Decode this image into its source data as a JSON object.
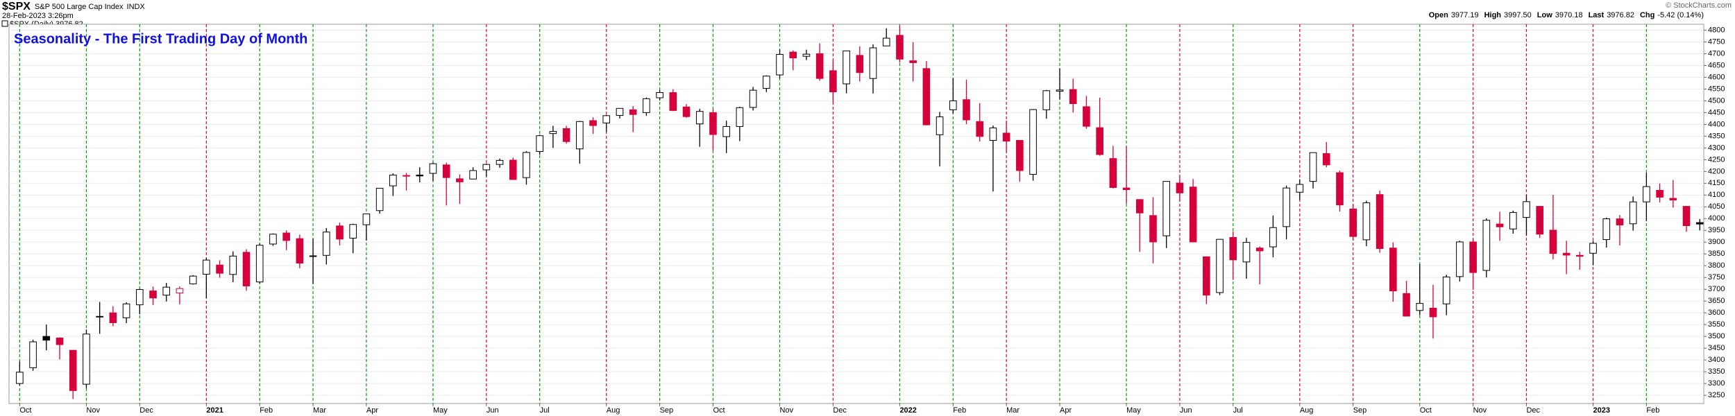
{
  "chart_data": {
    "type": "candlestick",
    "symbol": "$SPX",
    "name": "S&P 500 Large Cap Index",
    "exchange": "INDX",
    "date": "28-Feb-2023 3:26pm",
    "legend_label": "$SPX (Daily) 3976.82",
    "credit": "© StockCharts.com",
    "title": "Seasonality - The First Trading Day of Month",
    "quote": [
      {
        "label": "Open",
        "value": "3977.19"
      },
      {
        "label": "High",
        "value": "3997.50"
      },
      {
        "label": "Low",
        "value": "3970.18"
      },
      {
        "label": "Last",
        "value": "3976.82"
      },
      {
        "label": "Chg",
        "value": "-5.42 (0.14%)"
      }
    ],
    "up_color": "#000000",
    "down_color": "#d6003a",
    "grid": true,
    "xlim": [
      -0.8,
      126.3
    ],
    "xticks": [
      {
        "value": 0,
        "label": "Oct"
      },
      {
        "value": 5,
        "label": "Nov"
      },
      {
        "value": 9,
        "label": "Dec"
      },
      {
        "value": 14,
        "label": "2021"
      },
      {
        "value": 18,
        "label": "Feb"
      },
      {
        "value": 22,
        "label": "Mar"
      },
      {
        "value": 26,
        "label": "Apr"
      },
      {
        "value": 31,
        "label": "May"
      },
      {
        "value": 35,
        "label": "Jun"
      },
      {
        "value": 39,
        "label": "Jul"
      },
      {
        "value": 44,
        "label": "Aug"
      },
      {
        "value": 48,
        "label": "Sep"
      },
      {
        "value": 52,
        "label": "Oct"
      },
      {
        "value": 57,
        "label": "Nov"
      },
      {
        "value": 61,
        "label": "Dec"
      },
      {
        "value": 66,
        "label": "2022"
      },
      {
        "value": 70,
        "label": "Feb"
      },
      {
        "value": 74,
        "label": "Mar"
      },
      {
        "value": 78,
        "label": "Apr"
      },
      {
        "value": 83,
        "label": "May"
      },
      {
        "value": 87,
        "label": "Jun"
      },
      {
        "value": 91,
        "label": "Jul"
      },
      {
        "value": 96,
        "label": "Aug"
      },
      {
        "value": 100,
        "label": "Sep"
      },
      {
        "value": 105,
        "label": "Oct"
      },
      {
        "value": 109,
        "label": "Nov"
      },
      {
        "value": 113,
        "label": "Dec"
      },
      {
        "value": 118,
        "label": "2023"
      },
      {
        "value": 122,
        "label": "Feb"
      }
    ],
    "month_line_colors": [
      "#00a000",
      "#00a000",
      "#00a000",
      "#e0002a",
      "#00a000",
      "#00a000",
      "#00a000",
      "#00a000",
      "#e0002a",
      "#00a000",
      "#e0002a",
      "#00a000",
      "#00a000",
      "#00a000",
      "#e0002a",
      "#00a000",
      "#00a000",
      "#e0002a",
      "#00a000",
      "#00a000",
      "#e0002a",
      "#00a000",
      "#e0002a",
      "#e0002a",
      "#00a000",
      "#e0002a",
      "#e0002a",
      "#e0002a",
      "#00a000"
    ],
    "ylim": [
      3215,
      4825
    ],
    "yticks": [
      3250,
      3300,
      3350,
      3400,
      3450,
      3500,
      3550,
      3600,
      3650,
      3700,
      3750,
      3800,
      3850,
      3900,
      3950,
      4000,
      4050,
      4100,
      4150,
      4200,
      4250,
      4300,
      4350,
      4400,
      4450,
      4500,
      4550,
      4600,
      4650,
      4700,
      4750,
      4800
    ],
    "open": [
      3300,
      3367,
      3500,
      3493,
      3441,
      3297,
      3584,
      3600,
      3579,
      3634,
      3693,
      3675,
      3684,
      3723,
      3764,
      3803,
      3763,
      3857,
      3731,
      3892,
      3939,
      3915,
      3842,
      3844,
      3969,
      3917,
      3974,
      4034,
      4139,
      4183,
      4185,
      4192,
      4228,
      4169,
      4168,
      4207,
      4230,
      4248,
      4174,
      4285,
      4361,
      4382,
      4296,
      4416,
      4406,
      4438,
      4462,
      4450,
      4513,
      4535,
      4474,
      4402,
      4450,
      4348,
      4391,
      4472,
      4553,
      4610,
      4707,
      4689,
      4700,
      4628,
      4572,
      4693,
      4595,
      4733,
      4778,
      4670,
      4637,
      4356,
      4462,
      4505,
      4412,
      4332,
      4363,
      4332,
      4188,
      4462,
      4541,
      4548,
      4475,
      4386,
      4255,
      4130,
      4081,
      4013,
      3927,
      4151,
      4134,
      3838,
      3686,
      3920,
      3816,
      3875,
      3880,
      3966,
      4112,
      4158,
      4276,
      4195,
      4041,
      3910,
      4102,
      3875,
      3682,
      3610,
      3620,
      3638,
      3754,
      3901,
      3780,
      3977,
      3956,
      4005,
      4052,
      3951,
      3853,
      3844,
      3853,
      3911,
      3999,
      3978,
      4071,
      4120,
      4086,
      4052,
      3983
    ],
    "high": [
      3393,
      3486,
      3550,
      3496,
      3441,
      3529,
      3646,
      3628,
      3645,
      3702,
      3712,
      3727,
      3712,
      3760,
      3833,
      3823,
      3861,
      3870,
      3894,
      3937,
      3950,
      3932,
      3915,
      3960,
      3983,
      3978,
      4020,
      4130,
      4192,
      4194,
      4218,
      4238,
      4238,
      4188,
      4218,
      4234,
      4255,
      4259,
      4286,
      4356,
      4394,
      4394,
      4415,
      4430,
      4441,
      4469,
      4478,
      4514,
      4546,
      4549,
      4486,
      4466,
      4465,
      4416,
      4475,
      4559,
      4608,
      4718,
      4714,
      4717,
      4744,
      4672,
      4713,
      4731,
      4740,
      4808,
      4819,
      4749,
      4669,
      4453,
      4596,
      4590,
      4490,
      4395,
      4416,
      4332,
      4465,
      4546,
      4637,
      4594,
      4521,
      4513,
      4309,
      4308,
      4081,
      4091,
      4158,
      4179,
      4168,
      3838,
      3914,
      3946,
      3918,
      3882,
      4013,
      4140,
      4167,
      4281,
      4325,
      4204,
      4062,
      4076,
      4119,
      3899,
      3736,
      3807,
      3719,
      3762,
      3906,
      3911,
      4001,
      4029,
      4034,
      4100,
      4052,
      4101,
      3906,
      3859,
      3906,
      4004,
      4015,
      4094,
      4195,
      4149,
      4164,
      4054,
      3998
    ],
    "low": [
      3292,
      3354,
      3441,
      3402,
      3234,
      3279,
      3511,
      3543,
      3556,
      3594,
      3633,
      3648,
      3636,
      3720,
      3663,
      3749,
      3730,
      3694,
      3725,
      3884,
      3866,
      3789,
      3723,
      3805,
      3886,
      3853,
      3907,
      4021,
      4096,
      4119,
      4154,
      4160,
      4056,
      4062,
      4168,
      4179,
      4216,
      4164,
      4144,
      4271,
      4300,
      4318,
      4233,
      4360,
      4368,
      4425,
      4367,
      4436,
      4502,
      4456,
      4428,
      4305,
      4289,
      4278,
      4329,
      4459,
      4537,
      4595,
      4630,
      4673,
      4585,
      4495,
      4532,
      4582,
      4531,
      4733,
      4662,
      4582,
      4396,
      4222,
      4446,
      4401,
      4327,
      4115,
      4279,
      4157,
      4161,
      4424,
      4506,
      4450,
      4381,
      4267,
      4128,
      4063,
      3859,
      3810,
      3875,
      4074,
      3900,
      3637,
      3675,
      3740,
      3745,
      3721,
      3836,
      3912,
      4079,
      4128,
      4218,
      4030,
      3907,
      3883,
      3855,
      3647,
      3584,
      3590,
      3491,
      3590,
      3733,
      3698,
      3750,
      3906,
      3936,
      3928,
      3918,
      3827,
      3764,
      3783,
      3802,
      3877,
      3886,
      3949,
      3990,
      4069,
      4047,
      3944,
      3950
    ],
    "close": [
      3348,
      3477,
      3484,
      3465,
      3270,
      3510,
      3585,
      3558,
      3638,
      3699,
      3663,
      3709,
      3703,
      3756,
      3824,
      3768,
      3841,
      3714,
      3887,
      3934,
      3907,
      3811,
      3842,
      3943,
      3913,
      3975,
      4020,
      4129,
      4185,
      4180,
      4181,
      4233,
      4174,
      4156,
      4204,
      4230,
      4247,
      4166,
      4281,
      4352,
      4370,
      4327,
      4412,
      4395,
      4437,
      4468,
      4442,
      4509,
      4535,
      4459,
      4433,
      4455,
      4357,
      4391,
      4471,
      4545,
      4605,
      4697,
      4682,
      4698,
      4595,
      4538,
      4712,
      4620,
      4725,
      4766,
      4677,
      4662,
      4398,
      4432,
      4500,
      4419,
      4349,
      4385,
      4329,
      4204,
      4463,
      4543,
      4546,
      4488,
      4392,
      4272,
      4132,
      4123,
      4024,
      3901,
      4158,
      4109,
      3901,
      3675,
      3912,
      3825,
      3899,
      3863,
      3962,
      4130,
      4145,
      4280,
      4228,
      4058,
      3924,
      4067,
      3873,
      3693,
      3586,
      3640,
      3583,
      3752,
      3901,
      3771,
      3993,
      3965,
      4026,
      4072,
      3934,
      3852,
      3845,
      3840,
      3895,
      3999,
      3973,
      4071,
      4136,
      4091,
      4079,
      3970,
      3977
    ]
  }
}
